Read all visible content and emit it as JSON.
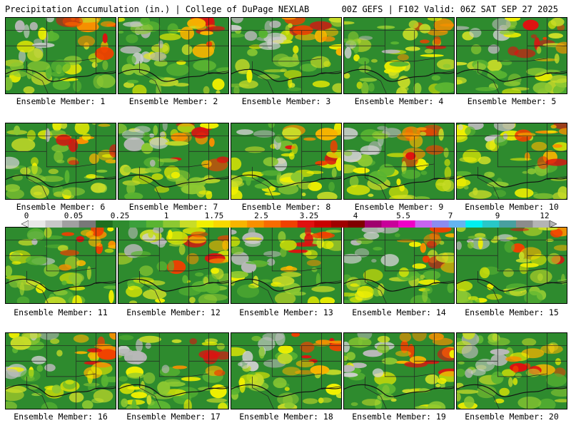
{
  "header": {
    "title_left": "Precipitation Accumulation (in.) | College of DuPage NEXLAB",
    "title_right": "00Z GEFS | F102 Valid: 06Z SAT SEP 27 2025"
  },
  "colorbar": {
    "labels": [
      "0",
      "0.05",
      "0.25",
      "1",
      "1.75",
      "2.5",
      "3.25",
      "4",
      "5.5",
      "7",
      "9",
      "12"
    ],
    "colors": [
      "#e8e8e8",
      "#c8c8c8",
      "#a0a0a0",
      "#787878",
      "#1e6e1e",
      "#2e8b2e",
      "#3ca03c",
      "#5ab432",
      "#8cc832",
      "#c8dc28",
      "#f0f000",
      "#f8d800",
      "#f8b400",
      "#f89000",
      "#f86c00",
      "#f04000",
      "#e01010",
      "#c80000",
      "#a00000",
      "#800000",
      "#a0006e",
      "#c8009a",
      "#f000c8",
      "#c864f0",
      "#8c8cf0",
      "#64b4f0",
      "#00f0f0",
      "#28c8c8",
      "#48a0a0",
      "#8c8c8c",
      "#b4b4b4"
    ]
  },
  "members": [
    {
      "label": "Ensemble Member: 1"
    },
    {
      "label": "Ensemble Member: 2"
    },
    {
      "label": "Ensemble Member: 3"
    },
    {
      "label": "Ensemble Member: 4"
    },
    {
      "label": "Ensemble Member: 5"
    },
    {
      "label": "Ensemble Member: 6"
    },
    {
      "label": "Ensemble Member: 7"
    },
    {
      "label": "Ensemble Member: 8"
    },
    {
      "label": "Ensemble Member: 9"
    },
    {
      "label": "Ensemble Member: 10"
    },
    {
      "label": "Ensemble Member: 11"
    },
    {
      "label": "Ensemble Member: 12"
    },
    {
      "label": "Ensemble Member: 13"
    },
    {
      "label": "Ensemble Member: 14"
    },
    {
      "label": "Ensemble Member: 15"
    },
    {
      "label": "Ensemble Member: 16"
    },
    {
      "label": "Ensemble Member: 17"
    },
    {
      "label": "Ensemble Member: 18"
    },
    {
      "label": "Ensemble Member: 19"
    },
    {
      "label": "Ensemble Member: 20"
    }
  ]
}
